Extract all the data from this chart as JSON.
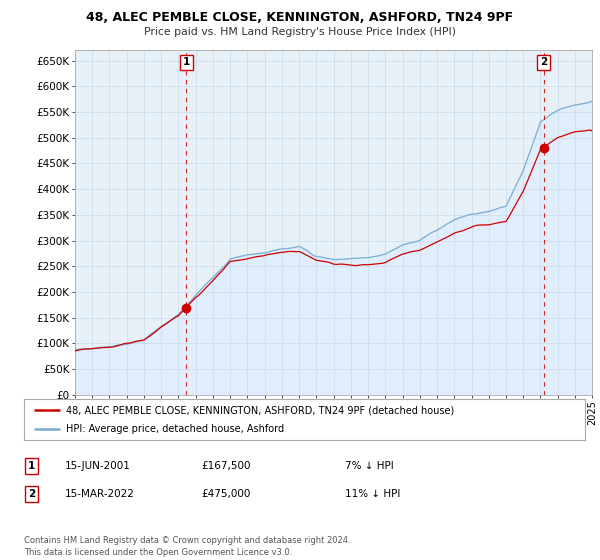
{
  "title_line1": "48, ALEC PEMBLE CLOSE, KENNINGTON, ASHFORD, TN24 9PF",
  "title_line2": "Price paid vs. HM Land Registry's House Price Index (HPI)",
  "ylim": [
    0,
    670000
  ],
  "yticks": [
    0,
    50000,
    100000,
    150000,
    200000,
    250000,
    300000,
    350000,
    400000,
    450000,
    500000,
    550000,
    600000,
    650000
  ],
  "x_start_year": 1995,
  "x_end_year": 2025,
  "sale1_price": 167500,
  "sale1_x": 2001.45,
  "sale2_price": 475000,
  "sale2_x": 2022.2,
  "red_color": "#cc0000",
  "blue_color": "#7aadcf",
  "blue_fill": "#ddeeff",
  "legend_entry1": "48, ALEC PEMBLE CLOSE, KENNINGTON, ASHFORD, TN24 9PF (detached house)",
  "legend_entry2": "HPI: Average price, detached house, Ashford",
  "table_row1": [
    "1",
    "15-JUN-2001",
    "£167,500",
    "7% ↓ HPI"
  ],
  "table_row2": [
    "2",
    "15-MAR-2022",
    "£475,000",
    "11% ↓ HPI"
  ],
  "footer": "Contains HM Land Registry data © Crown copyright and database right 2024.\nThis data is licensed under the Open Government Licence v3.0.",
  "bg_color": "#ffffff",
  "grid_color": "#ccddee",
  "plot_bg": "#e8f0f8"
}
